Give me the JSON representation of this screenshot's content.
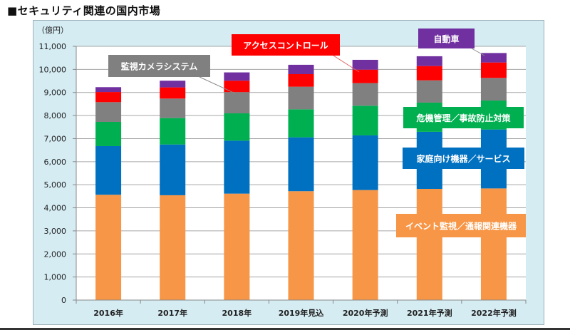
{
  "page_title": "■セキュリティ関連の国内市場",
  "chart_data": {
    "type": "bar",
    "stacked": true,
    "title": "■セキュリティ関連の国内市場",
    "ylabel": "（億円）",
    "xlabel": "",
    "ylim": [
      0,
      11000
    ],
    "yticks": [
      0,
      1000,
      2000,
      3000,
      4000,
      5000,
      6000,
      7000,
      8000,
      9000,
      10000,
      11000
    ],
    "ytick_labels": [
      "0",
      "1,000",
      "2,000",
      "3,000",
      "4,000",
      "5,000",
      "6,000",
      "7,000",
      "8,000",
      "9,000",
      "10,000",
      "11,000"
    ],
    "grid": true,
    "categories": [
      "2016年",
      "2017年",
      "2018年",
      "2019年見込",
      "2020年予測",
      "2021年予測",
      "2022年予測"
    ],
    "series": [
      {
        "name": "イベント監視／通報関連機器",
        "color": "#f79646",
        "values": [
          4565,
          4545,
          4615,
          4720,
          4770,
          4820,
          4840
        ]
      },
      {
        "name": "家庭向け機器／サービス",
        "color": "#0070c0",
        "values": [
          2110,
          2200,
          2295,
          2335,
          2370,
          2475,
          2555
        ]
      },
      {
        "name": "危機管理／事故防止対策",
        "color": "#00b050",
        "values": [
          1050,
          1145,
          1185,
          1215,
          1285,
          1265,
          1255
        ]
      },
      {
        "name": "監視カメラシステム",
        "color": "#808080",
        "values": [
          855,
          845,
          920,
          980,
          980,
          965,
          980
        ]
      },
      {
        "name": "アクセスコントロール",
        "color": "#ff0000",
        "values": [
          440,
          485,
          495,
          545,
          585,
          620,
          670
        ]
      },
      {
        "name": "自動車",
        "color": "#7030a0",
        "values": [
          210,
          290,
          360,
          405,
          425,
          425,
          410
        ]
      }
    ],
    "totals": [
      9230,
      9510,
      9870,
      10200,
      10415,
      10570,
      10710
    ],
    "legend": "callouts",
    "annotations": [
      {
        "text": "監視カメラシステム",
        "series": "監視カメラシステム",
        "points_to": "2018年"
      },
      {
        "text": "アクセスコントロール",
        "series": "アクセスコントロール",
        "points_to": "2020年予測"
      },
      {
        "text": "自動車",
        "series": "自動車",
        "points_to": "2022年予測"
      },
      {
        "text": "危機管理／事故防止対策",
        "series": "危機管理／事故防止対策"
      },
      {
        "text": "家庭向け機器／サービス",
        "series": "家庭向け機器／サービス"
      },
      {
        "text": "イベント監視／通報関連機器",
        "series": "イベント監視／通報関連機器"
      }
    ]
  }
}
